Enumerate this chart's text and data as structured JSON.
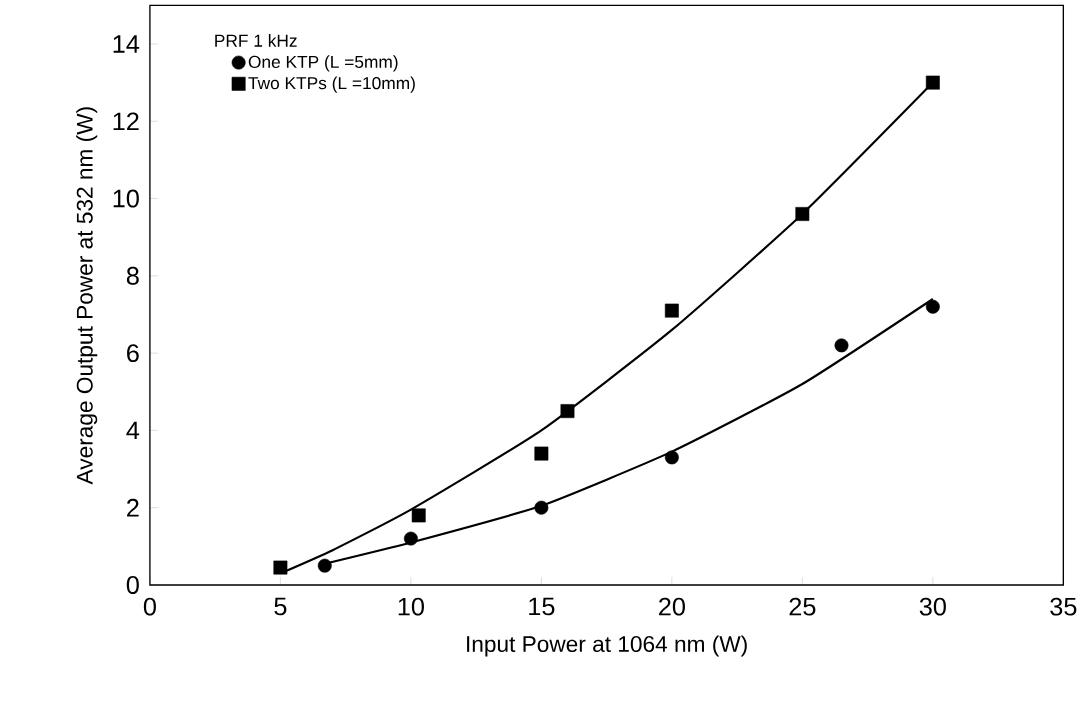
{
  "chart_data": {
    "type": "scatter",
    "xlabel": "Input Power at 1064 nm  (W)",
    "ylabel": "Average Output Power at 532 nm  (W)",
    "legend_title": "PRF  1 kHz",
    "legend": "top left",
    "xlim": [
      0,
      35
    ],
    "ylim": [
      0,
      15
    ],
    "xticks": [
      0,
      5,
      10,
      15,
      20,
      25,
      30,
      35
    ],
    "yticks": [
      0,
      2,
      4,
      6,
      8,
      10,
      12,
      14
    ],
    "grid": false,
    "series": [
      {
        "name": "One KTP    (L =5mm)",
        "marker": "circle",
        "color": "#000000",
        "x": [
          6.7,
          10,
          15,
          20,
          26.5,
          30
        ],
        "values": [
          0.5,
          1.2,
          2.0,
          3.3,
          6.2,
          7.2
        ]
      },
      {
        "name": "Two KTPs   (L =10mm)",
        "marker": "square",
        "color": "#000000",
        "x": [
          5,
          10.3,
          15,
          16,
          20,
          25,
          30
        ],
        "values": [
          0.45,
          1.8,
          3.4,
          4.5,
          7.1,
          9.6,
          13.0
        ]
      },
      {
        "type": "line",
        "marker": "none",
        "color": "#000000",
        "x": [
          6.7,
          10,
          15,
          20,
          25,
          30
        ],
        "values": [
          0.55,
          1.1,
          2.05,
          3.45,
          5.2,
          7.4
        ]
      },
      {
        "type": "line",
        "marker": "none",
        "color": "#000000",
        "x": [
          5,
          7,
          10,
          15,
          20,
          25,
          30
        ],
        "values": [
          0.3,
          0.9,
          1.95,
          4.0,
          6.6,
          9.6,
          13.0
        ]
      }
    ]
  }
}
